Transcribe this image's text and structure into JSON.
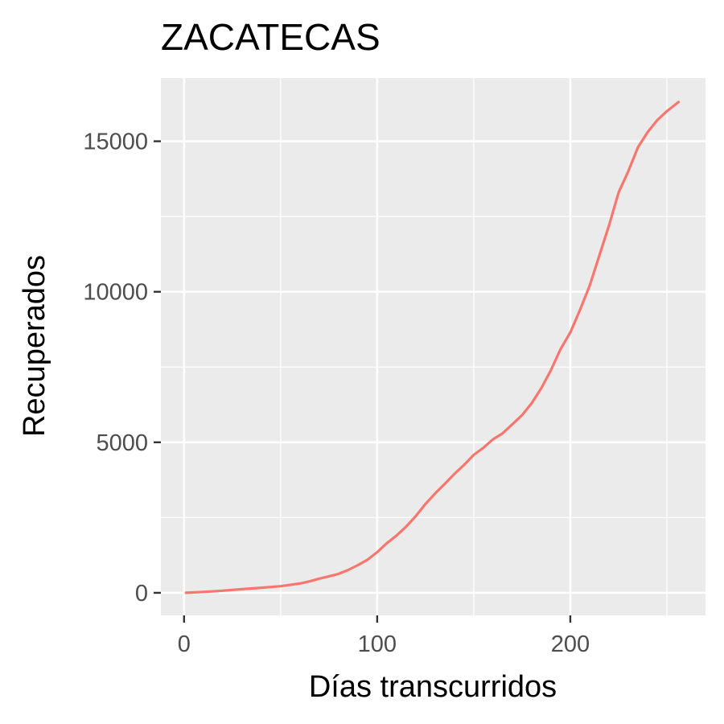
{
  "chart_data": {
    "type": "line",
    "title": "ZACATECAS",
    "xlabel": "Días transcurridos",
    "ylabel": "Recuperados",
    "xlim": [
      -12,
      270
    ],
    "ylim": [
      -750,
      17100
    ],
    "x_ticks": [
      0,
      100,
      200
    ],
    "y_ticks": [
      0,
      5000,
      10000,
      15000
    ],
    "x_tick_labels": [
      "0",
      "100",
      "200"
    ],
    "y_tick_labels": [
      "0",
      "5000",
      "10000",
      "15000"
    ],
    "grid": true,
    "legend": "none",
    "colors": {
      "panel": "#ebebeb",
      "grid": "#ffffff",
      "line": "#f8766d",
      "tick": "#333333"
    },
    "series": [
      {
        "x": [
          1,
          10,
          20,
          30,
          40,
          50,
          60,
          65,
          70,
          75,
          80,
          85,
          90,
          95,
          100,
          105,
          110,
          115,
          120,
          125,
          130,
          135,
          140,
          145,
          150,
          155,
          160,
          165,
          170,
          175,
          180,
          185,
          190,
          195,
          200,
          205,
          210,
          215,
          220,
          225,
          230,
          235,
          240,
          245,
          250,
          256
        ],
        "y": [
          0,
          30,
          70,
          120,
          170,
          220,
          310,
          380,
          470,
          550,
          630,
          760,
          920,
          1100,
          1350,
          1650,
          1900,
          2200,
          2550,
          2950,
          3300,
          3620,
          3950,
          4250,
          4580,
          4820,
          5100,
          5300,
          5600,
          5900,
          6300,
          6800,
          7400,
          8100,
          8650,
          9400,
          10200,
          11200,
          12200,
          13300,
          14000,
          14800,
          15300,
          15700,
          16000,
          16300
        ]
      }
    ]
  }
}
